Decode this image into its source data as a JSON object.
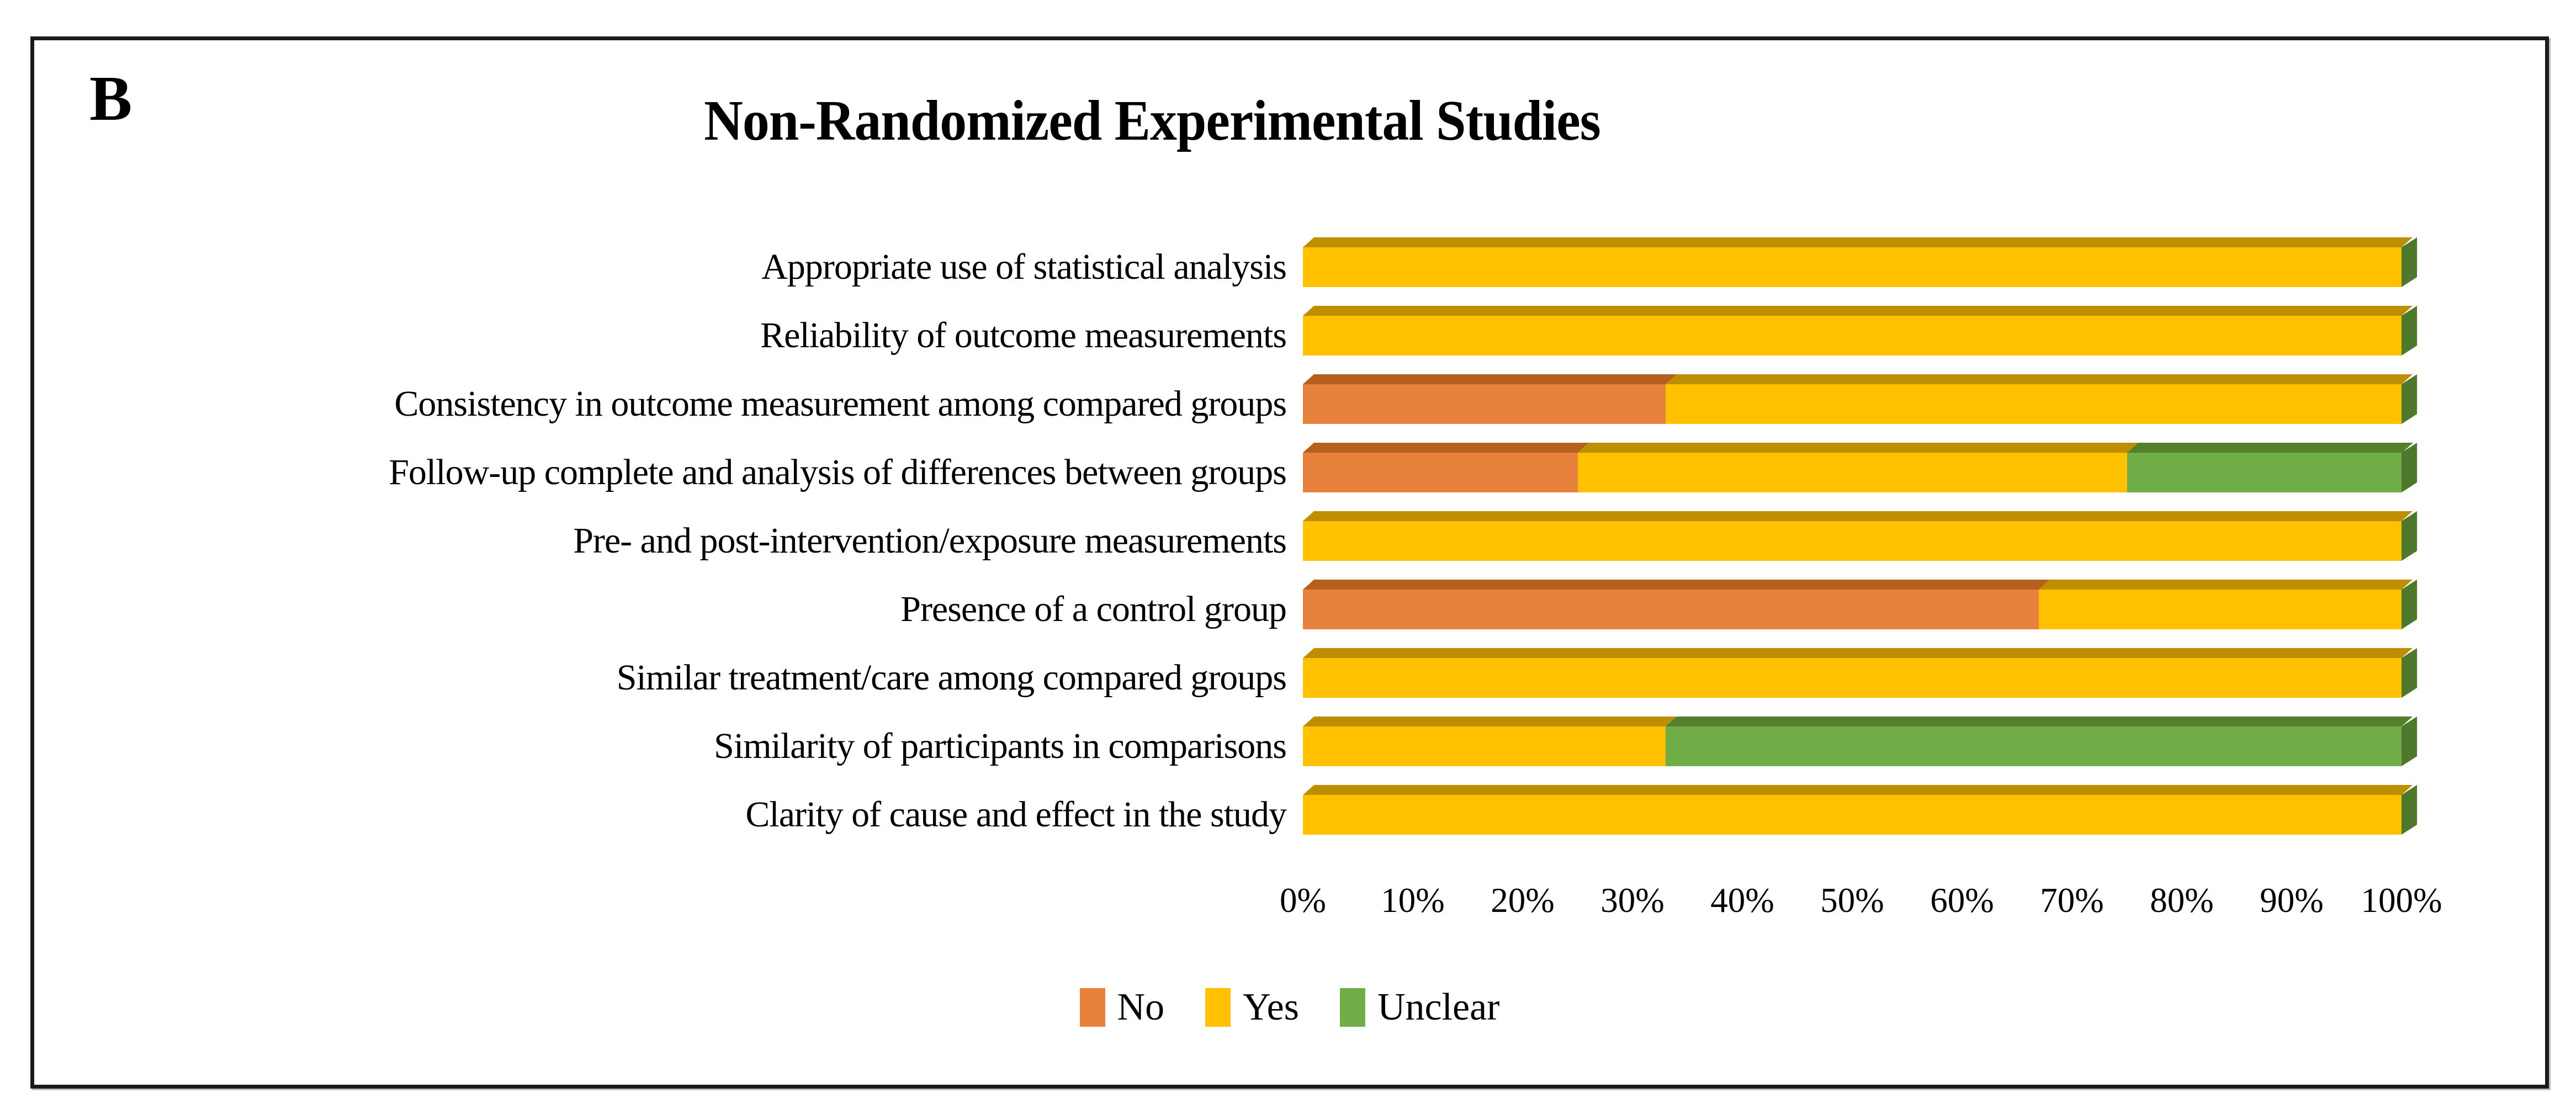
{
  "panel_label": "B",
  "colors": {
    "end_cap": "#4E792C",
    "border": "#1B1B1B",
    "no": "#E8813B",
    "yes": "#FFC000",
    "unclear": "#70AD47"
  },
  "chart_data": {
    "type": "bar",
    "orientation": "horizontal",
    "stacked": true,
    "title": "Non-Randomized Experimental Studies",
    "xlabel": "",
    "ylabel": "",
    "xlim": [
      0,
      100
    ],
    "gridlines": false,
    "legend_position": "bottom",
    "x_ticks": [
      "0%",
      "10%",
      "20%",
      "30%",
      "40%",
      "50%",
      "60%",
      "70%",
      "80%",
      "90%",
      "100%"
    ],
    "categories": [
      "Appropriate use of statistical analysis",
      "Reliability of outcome measurements",
      "Consistency in outcome measurement among compared groups",
      "Follow-up complete and analysis of differences between groups",
      "Pre- and post-intervention/exposure measurements",
      "Presence of a control group",
      "Similar treatment/care among compared groups",
      "Similarity of participants in comparisons",
      "Clarity of cause and effect in the study"
    ],
    "series": [
      {
        "name": "No",
        "color": "#E8813B",
        "top_color": "#B5601F",
        "values": [
          0,
          0,
          33,
          25,
          0,
          67,
          0,
          0,
          0
        ]
      },
      {
        "name": "Yes",
        "color": "#FFC000",
        "top_color": "#BD8F00",
        "values": [
          100,
          100,
          67,
          50,
          100,
          33,
          100,
          33,
          100
        ]
      },
      {
        "name": "Unclear",
        "color": "#70AD47",
        "top_color": "#567F2B",
        "values": [
          0,
          0,
          0,
          25,
          0,
          0,
          0,
          67,
          0
        ]
      }
    ]
  }
}
